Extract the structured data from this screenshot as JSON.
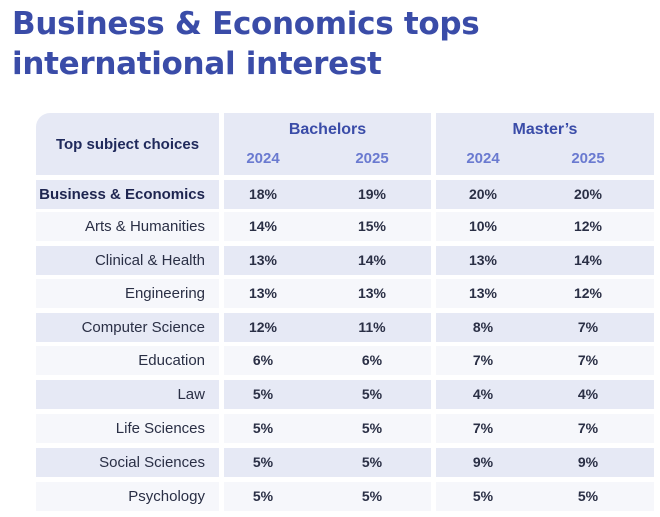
{
  "title": {
    "line1": "Business & Economics tops",
    "line2": "international interest"
  },
  "table": {
    "corner_header": "Top subject choices",
    "groups": [
      {
        "label": "Bachelors",
        "years": [
          "2024",
          "2025"
        ]
      },
      {
        "label": "Master’s",
        "years": [
          "2024",
          "2025"
        ]
      }
    ],
    "rows": [
      {
        "subject": "Business & Economics",
        "values": [
          "18%",
          "19%",
          "20%",
          "20%"
        ]
      },
      {
        "subject": "Arts & Humanities",
        "values": [
          "14%",
          "15%",
          "10%",
          "12%"
        ]
      },
      {
        "subject": "Clinical & Health",
        "values": [
          "13%",
          "14%",
          "13%",
          "14%"
        ]
      },
      {
        "subject": "Engineering",
        "values": [
          "13%",
          "13%",
          "13%",
          "12%"
        ]
      },
      {
        "subject": "Computer Science",
        "values": [
          "12%",
          "11%",
          "8%",
          "7%"
        ]
      },
      {
        "subject": "Education",
        "values": [
          "6%",
          "6%",
          "7%",
          "7%"
        ]
      },
      {
        "subject": "Law",
        "values": [
          "5%",
          "5%",
          "4%",
          "4%"
        ]
      },
      {
        "subject": "Life Sciences",
        "values": [
          "5%",
          "5%",
          "7%",
          "7%"
        ]
      },
      {
        "subject": "Social Sciences",
        "values": [
          "5%",
          "5%",
          "9%",
          "9%"
        ]
      },
      {
        "subject": "Psychology",
        "values": [
          "5%",
          "5%",
          "5%",
          "5%"
        ]
      }
    ]
  },
  "colors": {
    "title": "#3a4ca8",
    "row_shade": "#e6e9f5",
    "row_light": "#f6f7fb",
    "year_label": "#6a7ad0"
  }
}
